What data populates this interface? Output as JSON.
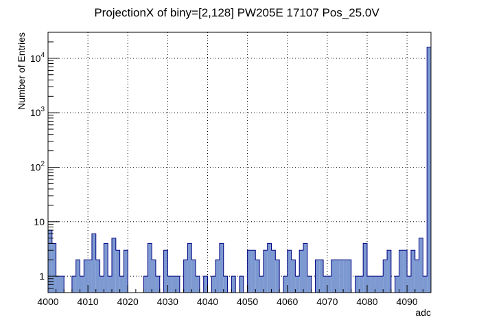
{
  "chart_data": {
    "type": "bar",
    "title": "ProjectionX of biny=[2,128] PW205E 17107 Pos_25.0V",
    "xlabel": "adc",
    "ylabel": "Number of Entries",
    "xlim": [
      4000,
      4096
    ],
    "ylim": [
      0.5,
      30000
    ],
    "yscale": "log",
    "grid": true,
    "xticks": [
      4000,
      4010,
      4020,
      4030,
      4040,
      4050,
      4060,
      4070,
      4080,
      4090
    ],
    "yticks": [
      {
        "value": 1,
        "label": "1"
      },
      {
        "value": 10,
        "label": "10"
      },
      {
        "value": 100,
        "label": "10²"
      },
      {
        "value": 1000,
        "label": "10³"
      },
      {
        "value": 10000,
        "label": "10⁴"
      }
    ],
    "series": [
      {
        "bin_width": 1,
        "x": [
          4000,
          4001,
          4002,
          4003,
          4004,
          4005,
          4006,
          4007,
          4008,
          4009,
          4010,
          4011,
          4012,
          4013,
          4014,
          4015,
          4016,
          4017,
          4018,
          4019,
          4020,
          4021,
          4022,
          4023,
          4024,
          4025,
          4026,
          4027,
          4028,
          4029,
          4030,
          4031,
          4032,
          4033,
          4034,
          4035,
          4036,
          4037,
          4038,
          4039,
          4040,
          4041,
          4042,
          4043,
          4044,
          4045,
          4046,
          4047,
          4048,
          4049,
          4050,
          4051,
          4052,
          4053,
          4054,
          4055,
          4056,
          4057,
          4058,
          4059,
          4060,
          4061,
          4062,
          4063,
          4064,
          4065,
          4066,
          4067,
          4068,
          4069,
          4070,
          4071,
          4072,
          4073,
          4074,
          4075,
          4076,
          4077,
          4078,
          4079,
          4080,
          4081,
          4082,
          4083,
          4084,
          4085,
          4086,
          4087,
          4088,
          4089,
          4090,
          4091,
          4092,
          4093,
          4094,
          4095
        ],
        "values": [
          7,
          4,
          1,
          1,
          0,
          0,
          1,
          2,
          1,
          2,
          2,
          6,
          2,
          1,
          4,
          1,
          5,
          3,
          1,
          3,
          0,
          0,
          0,
          0,
          1,
          4,
          2,
          1,
          0,
          3,
          1,
          1,
          1,
          0,
          2,
          4,
          2,
          1,
          0,
          1,
          0,
          1,
          2,
          4,
          1,
          0,
          1,
          0,
          1,
          0,
          3,
          3,
          2,
          1,
          3,
          4,
          3,
          2,
          0,
          1,
          3,
          2,
          1,
          3,
          4,
          1,
          0,
          2,
          2,
          1,
          1,
          2,
          2,
          2,
          2,
          2,
          0,
          1,
          1,
          4,
          1,
          1,
          1,
          1,
          2,
          3,
          0,
          1,
          3,
          3,
          1,
          3,
          2,
          5,
          1,
          16000
        ]
      }
    ],
    "colors": {
      "fill": "#7d99d1",
      "line": "#000080"
    }
  }
}
